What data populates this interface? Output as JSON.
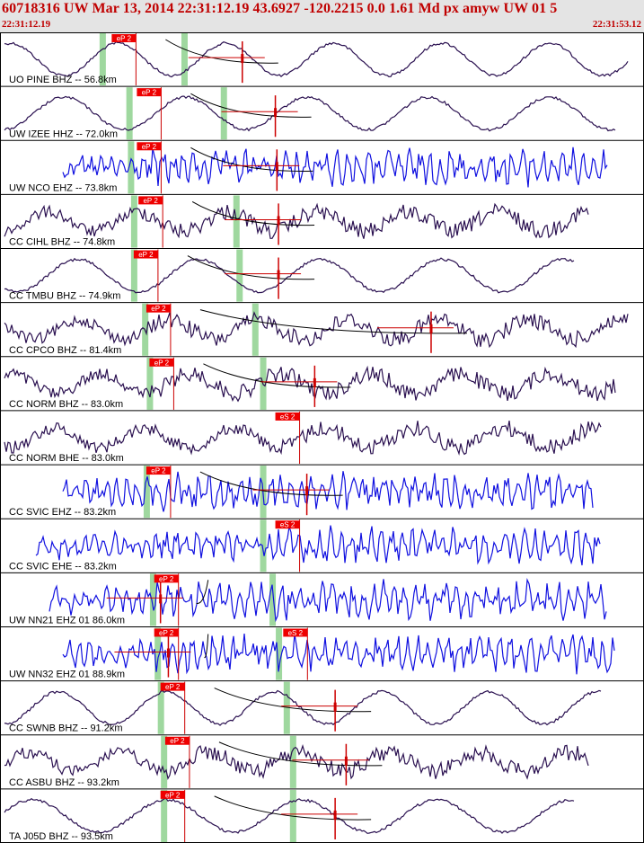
{
  "header": {
    "title": "60718316 UW Mar 13, 2014 22:31:12.19    43.6927 -120.2215  0.0 1.61 Md px amyw UW 01    5",
    "start_time": "22:31:12.19",
    "end_time": "22:31:53.12"
  },
  "colors": {
    "title_text": "#c00000",
    "header_bg": "#e4e4e4",
    "pick_box": "#ee0000",
    "pick_line": "#cc0000",
    "green_band": "#9fd89f",
    "waveform_dark": "#2a1050",
    "waveform_blue": "#1010e0",
    "coda_curve": "#000000"
  },
  "chart_data": {
    "type": "line",
    "title": "",
    "x_range_seconds": [
      0,
      40.93
    ],
    "traces": [
      {
        "label": "UO PINE BHZ -- 56.8km",
        "color": "dark",
        "style": "smooth",
        "picks": [
          {
            "label": "eP 2",
            "t": 7.1
          }
        ],
        "bands": [
          6.5,
          11.7
        ],
        "coda_t": 15.4
      },
      {
        "label": "UW IZEE HHZ -- 72.0km",
        "color": "dark",
        "style": "smooth",
        "picks": [
          {
            "label": "eP 2",
            "t": 8.7
          }
        ],
        "bands": [
          8.2,
          14.2
        ],
        "coda_t": 17.5
      },
      {
        "label": "UW NCO EHZ -- 73.8km",
        "color": "blue",
        "style": "noisy",
        "picks": [
          {
            "label": "eP 2",
            "t": 8.7
          }
        ],
        "bands": [
          8.3
        ],
        "coda_t": 17.6
      },
      {
        "label": "CC CIHL BHZ -- 74.8km",
        "color": "dark",
        "style": "mixed",
        "picks": [
          {
            "label": "eP 2",
            "t": 8.8
          }
        ],
        "bands": [
          8.5,
          15.0
        ],
        "coda_t": 17.7
      },
      {
        "label": "CC TMBU BHZ -- 74.9km",
        "color": "dark",
        "style": "smooth",
        "picks": [
          {
            "label": "eP 2",
            "t": 8.5
          }
        ],
        "bands": [
          8.5,
          15.2
        ],
        "coda_t": 17.7
      },
      {
        "label": "CC CPCO BHZ -- 81.4km",
        "color": "dark",
        "style": "mixed",
        "picks": [
          {
            "label": "eP 2",
            "t": 9.3
          }
        ],
        "bands": [
          9.2,
          16.2
        ],
        "coda_t": 27.4
      },
      {
        "label": "CC NORM BHZ -- 83.0km",
        "color": "dark",
        "style": "mixed",
        "picks": [
          {
            "label": "eP 2",
            "t": 9.5
          }
        ],
        "bands": [
          9.5,
          16.7
        ],
        "coda_t": 20.0
      },
      {
        "label": "CC NORM BHE -- 83.0km",
        "color": "dark",
        "style": "mixed",
        "picks": [
          {
            "label": "eS 2",
            "t": 17.5
          }
        ],
        "bands": [],
        "coda_t": null
      },
      {
        "label": "CC SVIC EHZ -- 83.2km",
        "color": "blue",
        "style": "noisy",
        "picks": [
          {
            "label": "eP 2",
            "t": 9.3
          }
        ],
        "bands": [
          9.3,
          16.7
        ],
        "coda_t": 19.5
      },
      {
        "label": "CC SVIC EHE -- 83.2km",
        "color": "blue",
        "style": "noisy",
        "picks": [
          {
            "label": "eS 2",
            "t": 17.5
          }
        ],
        "bands": [
          16.7
        ],
        "coda_t": null
      },
      {
        "label": "UW NN21 EHZ 01 86.0km",
        "color": "blue",
        "style": "noisy",
        "picks": [
          {
            "label": "eP 2",
            "t": 9.8
          }
        ],
        "bands": [
          9.7,
          17.3
        ],
        "coda_t": 10.2
      },
      {
        "label": "UW NN32 EHZ 01 88.9km",
        "color": "blue",
        "style": "noisy",
        "picks": [
          {
            "label": "eP 2",
            "t": 9.8
          },
          {
            "label": "eS 2",
            "t": 18.0
          }
        ],
        "bands": [
          10.0,
          17.7
        ],
        "coda_t": 10.7
      },
      {
        "label": "CC SWNB BHZ -- 91.2km",
        "color": "dark",
        "style": "smooth",
        "picks": [
          {
            "label": "eP 2",
            "t": 10.2
          }
        ],
        "bands": [
          10.2,
          18.2
        ],
        "coda_t": 21.3
      },
      {
        "label": "CC ASBU BHZ -- 93.2km",
        "color": "dark",
        "style": "mixed",
        "picks": [
          {
            "label": "eP 2",
            "t": 10.5
          }
        ],
        "bands": [
          10.4,
          18.6
        ],
        "coda_t": 22.0
      },
      {
        "label": "TA J05D BHZ -- 93.5km",
        "color": "dark",
        "style": "smooth",
        "picks": [
          {
            "label": "eP 2",
            "t": 10.2
          }
        ],
        "bands": [
          10.4,
          18.6
        ],
        "coda_t": 21.3
      }
    ]
  }
}
